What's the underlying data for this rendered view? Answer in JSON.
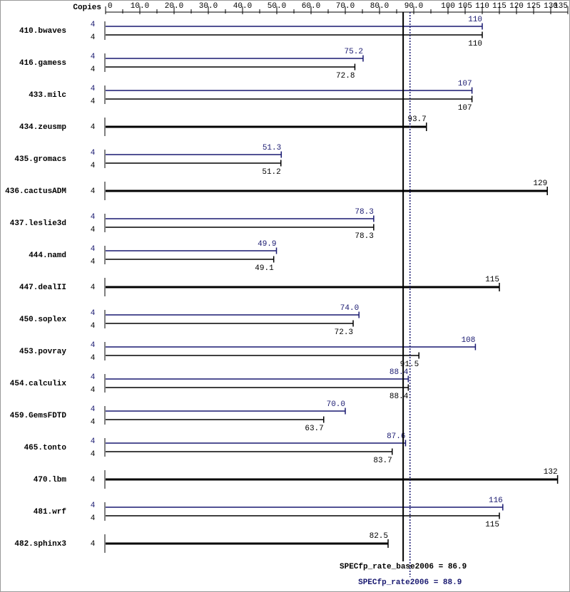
{
  "chart_data": {
    "type": "bar",
    "orientation": "horizontal",
    "copies_header": "Copies",
    "categories": [
      "410.bwaves",
      "416.gamess",
      "433.milc",
      "434.zeusmp",
      "435.gromacs",
      "436.cactusADM",
      "437.leslie3d",
      "444.namd",
      "447.dealII",
      "450.soplex",
      "453.povray",
      "454.calculix",
      "459.GemsFDTD",
      "465.tonto",
      "470.lbm",
      "481.wrf",
      "482.sphinx3"
    ],
    "series": [
      {
        "color": "#191970",
        "copies": [
          4,
          4,
          4,
          null,
          4,
          null,
          4,
          4,
          null,
          4,
          4,
          4,
          4,
          4,
          null,
          4,
          null
        ],
        "values": [
          110,
          75.2,
          107,
          null,
          51.3,
          null,
          78.3,
          49.9,
          null,
          74.0,
          108,
          88.4,
          70.0,
          87.6,
          null,
          116,
          null
        ],
        "value_labels": [
          "110",
          "75.2",
          "107",
          null,
          "51.3",
          null,
          "78.3",
          "49.9",
          null,
          "74.0",
          "108",
          "88.4",
          "70.0",
          "87.6",
          null,
          "116",
          null
        ]
      },
      {
        "color": "#000000",
        "copies": [
          4,
          4,
          4,
          4,
          4,
          4,
          4,
          4,
          4,
          4,
          4,
          4,
          4,
          4,
          4,
          4,
          4
        ],
        "values": [
          110,
          72.8,
          107,
          93.7,
          51.2,
          129,
          78.3,
          49.1,
          115,
          72.3,
          91.5,
          88.4,
          63.7,
          83.7,
          132,
          115,
          82.5
        ]
      }
    ],
    "xlim": [
      0,
      135
    ],
    "xticks": [
      0,
      {
        "value": 10,
        "label": "10.0"
      },
      {
        "value": 20,
        "label": "20.0"
      },
      {
        "value": 30,
        "label": "30.0"
      },
      {
        "value": 40,
        "label": "40.0"
      },
      {
        "value": 50,
        "label": "50.0"
      },
      {
        "value": 60,
        "label": "60.0"
      },
      {
        "value": 70,
        "label": "70.0"
      },
      {
        "value": 80,
        "label": "80.0"
      },
      {
        "value": 90,
        "label": "90.0"
      },
      100,
      105,
      110,
      115,
      120,
      125,
      130,
      135
    ],
    "minor_xticks": [
      5,
      15,
      25,
      35,
      45,
      55,
      65,
      75,
      85,
      95
    ],
    "reference_lines": [
      {
        "label": "SPECfp_rate_base2006 = 86.9",
        "value": 86.9,
        "color": "#000000",
        "dashed": false
      },
      {
        "label": "SPECfp_rate2006 = 88.9",
        "value": 88.9,
        "color": "#191970",
        "dashed": true
      }
    ]
  }
}
